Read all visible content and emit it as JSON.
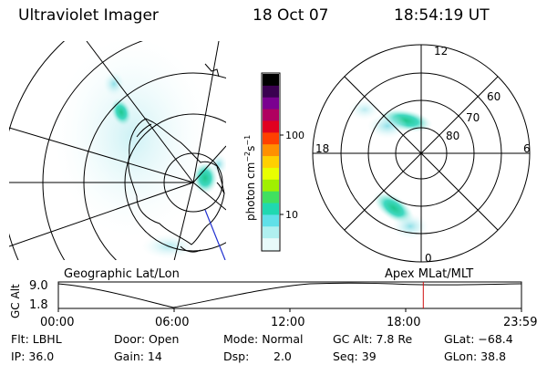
{
  "header": {
    "title": "Ultraviolet Imager",
    "date": "18 Oct 07",
    "time": "18:54:19 UT"
  },
  "panels": {
    "left_label": "Geographic Lat/Lon",
    "right_label": "Apex MLat/MLT"
  },
  "colorbar": {
    "unit_label": "photon cm",
    "unit_exp1": "−2",
    "unit_mid": "s",
    "unit_exp2": "−1",
    "ticks": [
      "100",
      "10"
    ],
    "colors": [
      "#000000",
      "#3a0050",
      "#7a0090",
      "#b00060",
      "#e00020",
      "#ff4000",
      "#ff9000",
      "#ffd000",
      "#e8ff00",
      "#a0f000",
      "#40e060",
      "#20d8b0",
      "#60e0e8",
      "#b0f0f0",
      "#e8fafa"
    ]
  },
  "polar_plot": {
    "mlt_labels": [
      "12",
      "18",
      "6",
      "0"
    ],
    "mlat_labels": [
      "60",
      "70",
      "80"
    ]
  },
  "altitude_strip": {
    "axis_title": "GC Alt",
    "y_ticks": [
      "9.0",
      "1.8"
    ],
    "x_ticks": [
      "00:00",
      "06:00",
      "12:00",
      "18:00",
      "23:59"
    ],
    "current_time_fraction": 0.788
  },
  "info": {
    "flt": "Flt: LBHL",
    "ip": "IP: 36.0",
    "door": "Door: Open",
    "gain": "Gain: 14",
    "mode": "Mode: Normal",
    "dsp_label": "Dsp:",
    "dsp_value": "2.0",
    "gc_alt": "GC Alt: 7.8 Re",
    "seq": "Seq: 39",
    "glat": "GLat: −68.4",
    "glon": "GLon: 38.8"
  }
}
